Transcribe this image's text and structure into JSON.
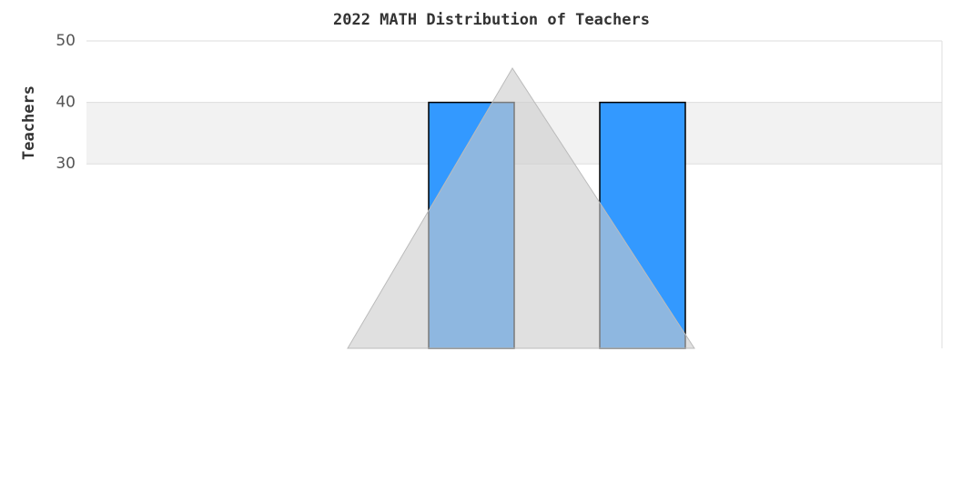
{
  "chart_data": {
    "type": "bar",
    "title": "2022 MATH Distribution of Teachers",
    "y_label": "Teachers",
    "categories": [
      null,
      null,
      null,
      null,
      null,
      null,
      null,
      null,
      null,
      null
    ],
    "values": [
      null,
      null,
      null,
      null,
      40,
      null,
      40,
      null,
      null,
      null
    ],
    "color": "#3399ff",
    "ylim": [
      0,
      50
    ],
    "yticks": [
      30,
      40,
      50
    ],
    "grid": true
  }
}
